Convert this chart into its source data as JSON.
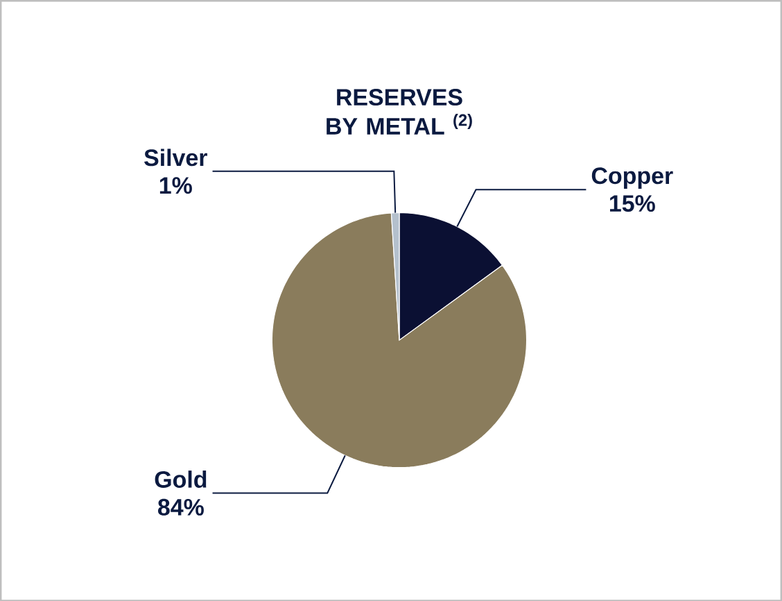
{
  "chart_data": {
    "type": "pie",
    "title": "RESERVES BY METAL $^{(2)}$",
    "categories": [
      "Copper",
      "Gold",
      "Silver"
    ],
    "values": [
      15,
      84,
      1
    ],
    "colors": [
      "#0b1033",
      "#8a7c5c",
      "#b4c0cc"
    ],
    "value_labels": [
      "15%",
      "84%",
      "1%"
    ]
  }
}
